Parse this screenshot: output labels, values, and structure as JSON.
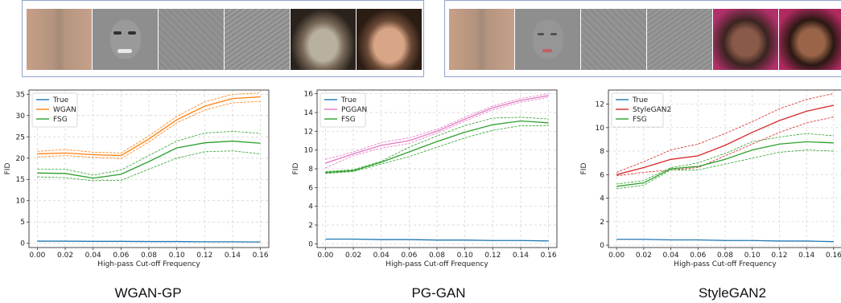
{
  "colors": {
    "true": "#1f77b4",
    "wgan": "#ff7f0e",
    "pggan": "#e377c2",
    "stylegan2": "#d62728",
    "fsg": "#2ca02c",
    "strip_border": "#8fa3cc"
  },
  "image_strips": [
    {
      "name": "wgan-gp-strip",
      "thumbnails": [
        "orange-blur-spectrum",
        "gray-highpass-face",
        "gray-highpass-noise",
        "gray-highpass-edges",
        "blurred-face-photo",
        "smiling-face-photo"
      ]
    },
    {
      "name": "stylegan2-strip",
      "thumbnails": [
        "orange-blur-spectrum",
        "gray-highpass-face",
        "gray-highpass-noise",
        "gray-highpass-edges",
        "blurred-face-photo",
        "smiling-face-photo"
      ]
    }
  ],
  "chart_data": [
    {
      "type": "line",
      "caption": "WGAN-GP",
      "xlabel": "High-pass Cut-off Frequency",
      "ylabel": "FID",
      "x": [
        0.0,
        0.02,
        0.04,
        0.06,
        0.08,
        0.1,
        0.12,
        0.14,
        0.16
      ],
      "xticks": [
        "0.00",
        "0.02",
        "0.04",
        "0.06",
        "0.08",
        "0.10",
        "0.12",
        "0.14",
        "0.16"
      ],
      "xlim": [
        -0.006,
        0.166
      ],
      "ylim": [
        -1,
        36
      ],
      "yticks": [
        "0",
        "5",
        "10",
        "15",
        "20",
        "25",
        "30",
        "35"
      ],
      "grid": true,
      "legend": "top-left",
      "legend_entries": [
        "True",
        "WGAN",
        "FSG"
      ],
      "series": [
        {
          "name": "True",
          "color": "#1f77b4",
          "values": [
            0.5,
            0.5,
            0.45,
            0.45,
            0.4,
            0.4,
            0.35,
            0.35,
            0.3
          ]
        },
        {
          "name": "WGAN",
          "color": "#ff7f0e",
          "values": [
            21.0,
            21.2,
            20.8,
            20.6,
            24.5,
            29.0,
            32.2,
            34.0,
            34.4
          ]
        },
        {
          "color": "#ff7f0e",
          "dashed": true,
          "values": [
            21.6,
            22.0,
            21.4,
            21.2,
            25.2,
            29.8,
            33.2,
            35.0,
            35.3
          ]
        },
        {
          "color": "#ff7f0e",
          "dashed": true,
          "values": [
            20.3,
            20.6,
            20.2,
            19.9,
            23.8,
            28.3,
            31.3,
            33.0,
            33.3
          ]
        },
        {
          "name": "FSG",
          "color": "#2ca02c",
          "values": [
            16.5,
            16.4,
            15.3,
            16.2,
            19.2,
            22.4,
            23.6,
            24.0,
            23.5
          ]
        },
        {
          "color": "#2ca02c",
          "dashed": true,
          "values": [
            17.4,
            17.4,
            16.0,
            17.2,
            20.6,
            24.0,
            25.9,
            26.3,
            25.8
          ]
        },
        {
          "color": "#2ca02c",
          "dashed": true,
          "values": [
            15.6,
            15.4,
            14.7,
            14.8,
            17.4,
            20.0,
            21.5,
            21.7,
            21.0
          ]
        }
      ]
    },
    {
      "type": "line",
      "caption": "PG-GAN",
      "xlabel": "High-pass Cut-off Frequency",
      "ylabel": "FID",
      "x": [
        0.0,
        0.02,
        0.04,
        0.06,
        0.08,
        0.1,
        0.12,
        0.14,
        0.16
      ],
      "xticks": [
        "0.00",
        "0.02",
        "0.04",
        "0.06",
        "0.08",
        "0.10",
        "0.12",
        "0.14",
        "0.16"
      ],
      "xlim": [
        -0.006,
        0.166
      ],
      "ylim": [
        -0.4,
        16.4
      ],
      "yticks": [
        "0",
        "2",
        "4",
        "6",
        "8",
        "10",
        "12",
        "14",
        "16"
      ],
      "grid": true,
      "legend": "top-left",
      "legend_entries": [
        "True",
        "PGGAN",
        "FSG"
      ],
      "series": [
        {
          "name": "True",
          "color": "#1f77b4",
          "values": [
            0.5,
            0.5,
            0.45,
            0.45,
            0.4,
            0.4,
            0.35,
            0.35,
            0.3
          ]
        },
        {
          "name": "PGGAN",
          "color": "#e377c2",
          "values": [
            8.6,
            9.6,
            10.5,
            11.0,
            12.0,
            13.3,
            14.5,
            15.3,
            15.8
          ]
        },
        {
          "color": "#e377c2",
          "dashed": true,
          "values": [
            9.0,
            9.8,
            10.8,
            11.3,
            12.2,
            13.5,
            14.7,
            15.5,
            16.0
          ]
        },
        {
          "color": "#e377c2",
          "dashed": true,
          "values": [
            8.1,
            9.4,
            10.2,
            10.7,
            11.8,
            13.1,
            14.3,
            15.1,
            15.6
          ]
        },
        {
          "name": "FSG",
          "color": "#2ca02c",
          "values": [
            7.6,
            7.8,
            8.7,
            9.8,
            10.9,
            11.9,
            12.7,
            13.1,
            12.9
          ]
        },
        {
          "color": "#2ca02c",
          "dashed": true,
          "values": [
            7.7,
            7.9,
            8.8,
            10.3,
            11.5,
            12.6,
            13.4,
            13.5,
            13.3
          ]
        },
        {
          "color": "#2ca02c",
          "dashed": true,
          "values": [
            7.5,
            7.7,
            8.5,
            9.3,
            10.3,
            11.3,
            12.1,
            12.6,
            12.6
          ]
        }
      ]
    },
    {
      "type": "line",
      "caption": "StyleGAN2",
      "xlabel": "High-pass Cut-off Frequency",
      "ylabel": "FID",
      "x": [
        0.0,
        0.02,
        0.04,
        0.06,
        0.08,
        0.1,
        0.12,
        0.14,
        0.16
      ],
      "xticks": [
        "0.00",
        "0.02",
        "0.04",
        "0.06",
        "0.08",
        "0.10",
        "0.12",
        "0.14",
        "0.16"
      ],
      "xlim": [
        -0.006,
        0.166
      ],
      "ylim": [
        -0.2,
        13.2
      ],
      "yticks": [
        "0",
        "2",
        "4",
        "6",
        "8",
        "10",
        "12"
      ],
      "grid": true,
      "legend": "top-left",
      "legend_entries": [
        "True",
        "StyleGAN2",
        "FSG"
      ],
      "series": [
        {
          "name": "True",
          "color": "#1f77b4",
          "values": [
            0.5,
            0.5,
            0.45,
            0.45,
            0.4,
            0.4,
            0.35,
            0.35,
            0.3
          ]
        },
        {
          "name": "StyleGAN2",
          "color": "#d62728",
          "values": [
            6.0,
            6.6,
            7.3,
            7.6,
            8.5,
            9.6,
            10.6,
            11.4,
            11.9
          ]
        },
        {
          "color": "#d62728",
          "dashed": true,
          "values": [
            6.2,
            7.1,
            8.1,
            8.6,
            9.5,
            10.5,
            11.6,
            12.4,
            12.9
          ]
        },
        {
          "color": "#d62728",
          "dashed": true,
          "values": [
            5.9,
            6.2,
            6.4,
            6.6,
            7.6,
            8.6,
            9.6,
            10.4,
            10.9
          ]
        },
        {
          "name": "FSG",
          "color": "#2ca02c",
          "values": [
            5.0,
            5.3,
            6.5,
            6.7,
            7.3,
            8.1,
            8.6,
            8.8,
            8.7
          ]
        },
        {
          "color": "#2ca02c",
          "dashed": true,
          "values": [
            5.2,
            5.5,
            6.6,
            7.0,
            7.8,
            8.8,
            9.2,
            9.5,
            9.3
          ]
        },
        {
          "color": "#2ca02c",
          "dashed": true,
          "values": [
            4.8,
            5.1,
            6.4,
            6.4,
            6.9,
            7.4,
            7.9,
            8.1,
            8.0
          ]
        }
      ]
    }
  ]
}
